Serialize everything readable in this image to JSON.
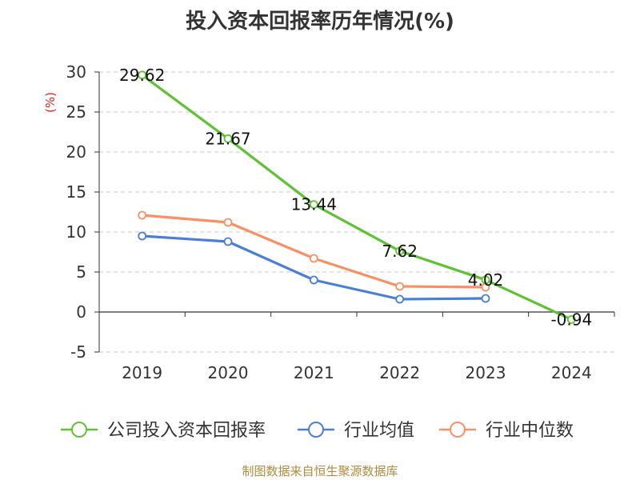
{
  "title": "投入资本回报率历年情况(%)",
  "source": "制图数据来自恒生聚源数据库",
  "colors": {
    "company": "#5fc234",
    "avg": "#4a7fd8",
    "median": "#f79163",
    "unit": "#e0201a"
  },
  "chart_data": {
    "type": "line",
    "title": "投入资本回报率历年情况(%)",
    "ylabel": "(%)",
    "xlabel": "",
    "categories": [
      "2019",
      "2020",
      "2021",
      "2022",
      "2023",
      "2024"
    ],
    "ylim": [
      -5,
      30
    ],
    "yticks": [
      -5,
      0,
      5,
      10,
      15,
      20,
      25,
      30
    ],
    "grid": true,
    "legend_position": "bottom",
    "series": [
      {
        "name": "公司投入资本回报率",
        "values": [
          29.62,
          21.67,
          13.44,
          7.62,
          4.02,
          -0.94
        ],
        "labels": [
          "29.62",
          "21.67",
          "13.44",
          "7.62",
          "4.02",
          "-0.94"
        ]
      },
      {
        "name": "行业均值",
        "values": [
          9.5,
          8.8,
          4.0,
          1.6,
          1.7,
          null
        ]
      },
      {
        "name": "行业中位数",
        "values": [
          12.1,
          11.2,
          6.7,
          3.2,
          3.1,
          null
        ]
      }
    ]
  }
}
